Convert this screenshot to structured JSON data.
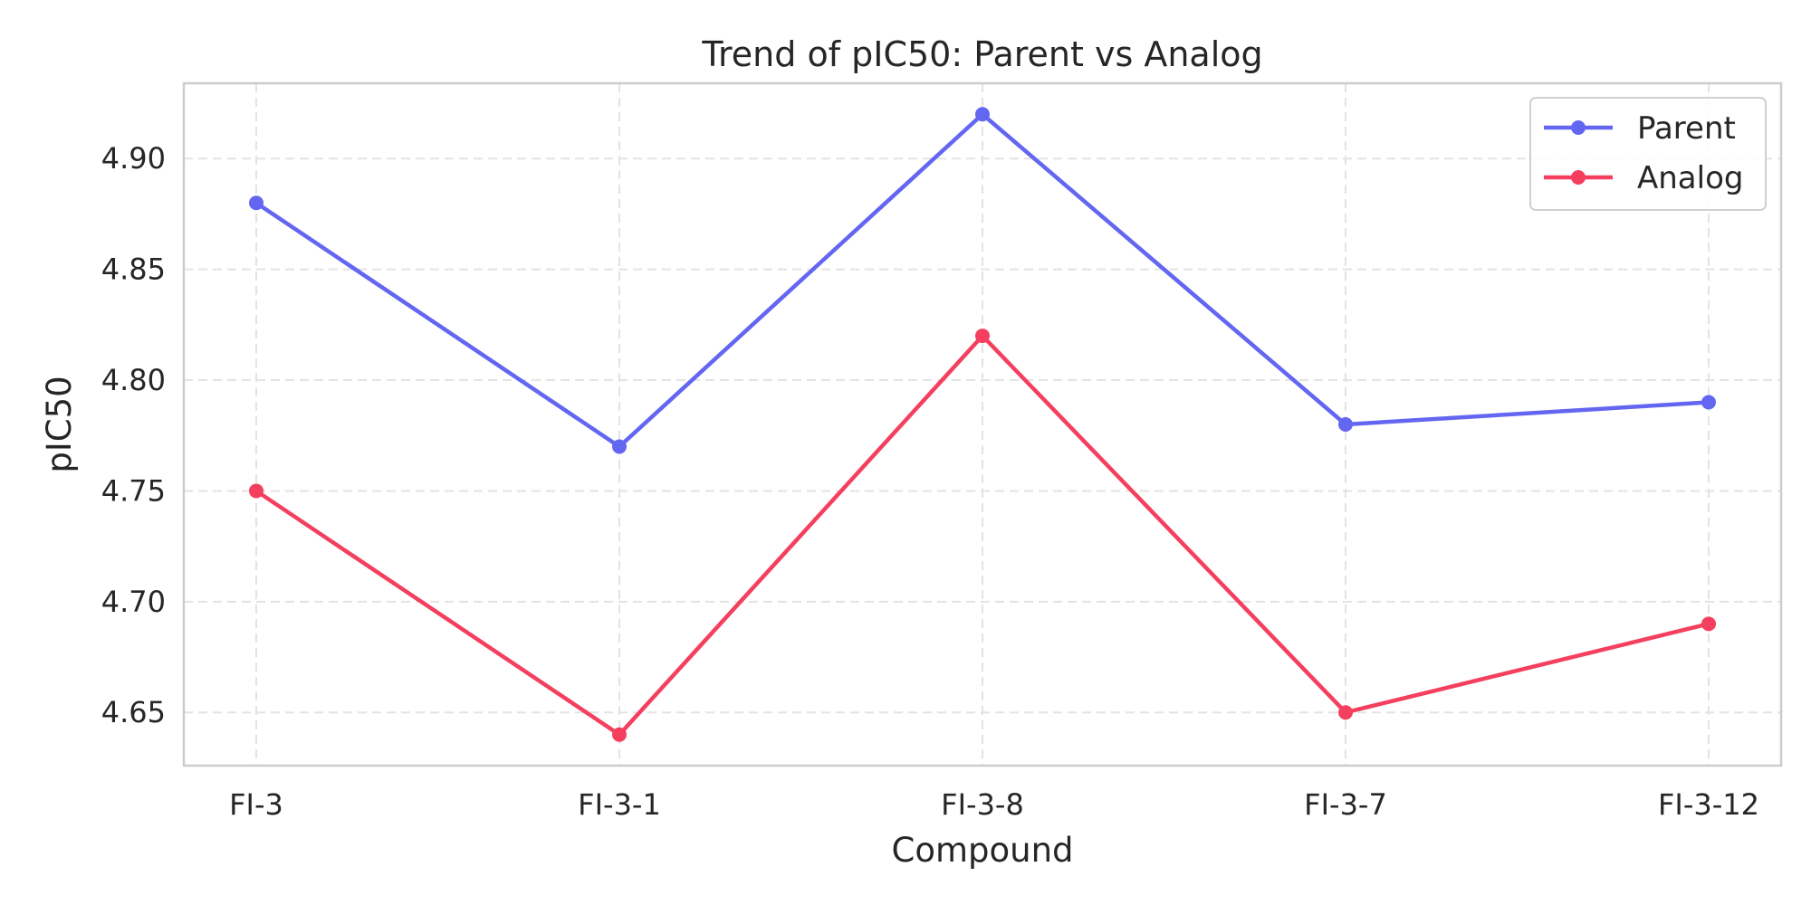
{
  "chart_data": {
    "type": "line",
    "title": "Trend of pIC50: Parent vs Analog",
    "xlabel": "Compound",
    "ylabel": "pIC50",
    "categories": [
      "FI-3",
      "FI-3-1",
      "FI-3-8",
      "FI-3-7",
      "FI-3-12"
    ],
    "series": [
      {
        "name": "Parent",
        "color": "#6366f1",
        "values": [
          4.88,
          4.77,
          4.92,
          4.78,
          4.79
        ]
      },
      {
        "name": "Analog",
        "color": "#f43f5e",
        "values": [
          4.75,
          4.64,
          4.82,
          4.65,
          4.69
        ]
      }
    ],
    "ylim": [
      4.626,
      4.934
    ],
    "yticks": [
      "4.65",
      "4.70",
      "4.75",
      "4.80",
      "4.85",
      "4.90"
    ],
    "grid": true,
    "legend_position": "top-right"
  }
}
